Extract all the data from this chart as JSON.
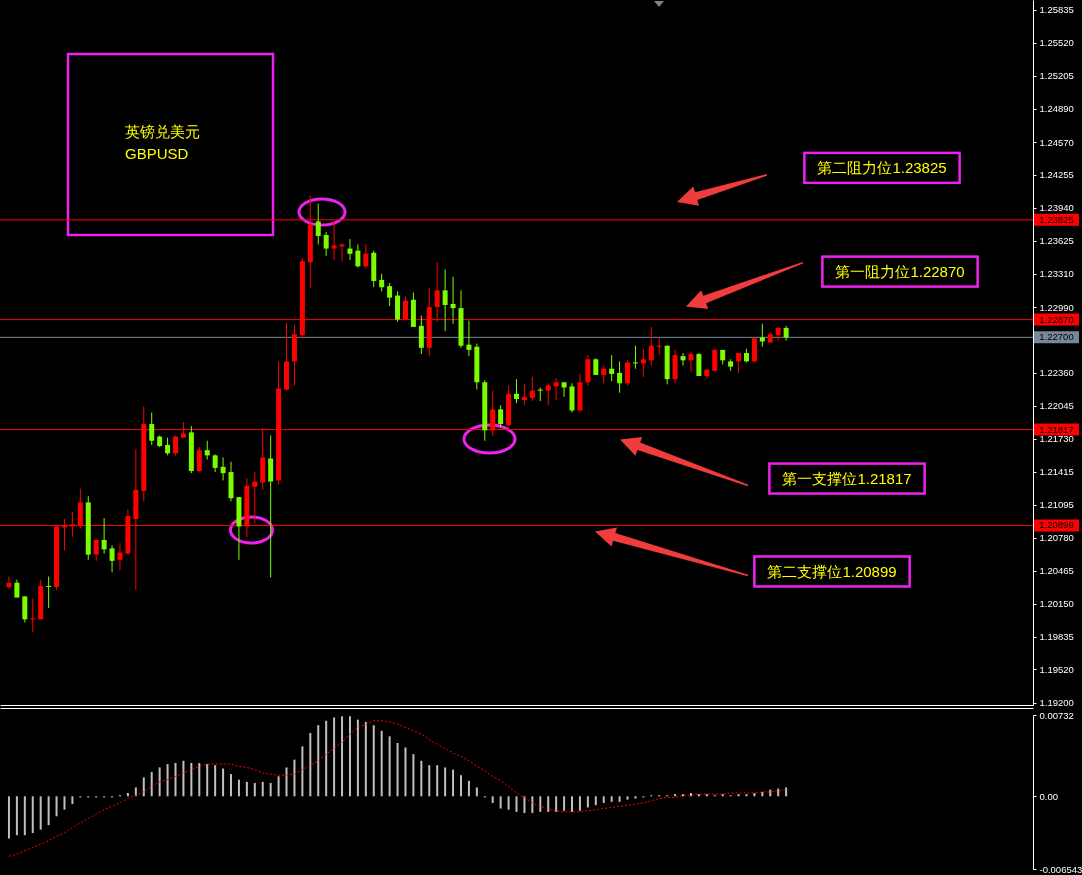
{
  "chart_data": [
    {
      "type": "candlestick",
      "title": "英镑兑美元",
      "subtitle": "GBPUSD",
      "categories": [
        null,
        null,
        null,
        null,
        null,
        null,
        null,
        null,
        null,
        null,
        null,
        null,
        null,
        null,
        null,
        null,
        null,
        null,
        null,
        null,
        null,
        null,
        null,
        null,
        null,
        null,
        null,
        null,
        null,
        null,
        null,
        null,
        null,
        null,
        null,
        null,
        null,
        null,
        null,
        null,
        null,
        null,
        null,
        null,
        null,
        null,
        null,
        null,
        null,
        null,
        null,
        null,
        null,
        null,
        null,
        null,
        null,
        null,
        null,
        null,
        null,
        null,
        null,
        null,
        null,
        null,
        null,
        null,
        null,
        null,
        null,
        null,
        null,
        null,
        null,
        null,
        null,
        null,
        null,
        null,
        null,
        null,
        null,
        null,
        null,
        null,
        null,
        null,
        null,
        null,
        null,
        null,
        null,
        null,
        null,
        null,
        null,
        null,
        null,
        null,
        null,
        null,
        null,
        null,
        null,
        null,
        null,
        null,
        null,
        null,
        null,
        null,
        null,
        null,
        null,
        null,
        null,
        null,
        null,
        null,
        null,
        null,
        null,
        null,
        null,
        null,
        null,
        null,
        null
      ],
      "ohlc": [
        [
          1.2031,
          1.2041,
          1.2029,
          1.2035
        ],
        [
          1.2035,
          1.2038,
          1.2021,
          1.2021
        ],
        [
          1.2022,
          1.2022,
          1.1997,
          1.2
        ],
        [
          1.2,
          1.202,
          1.1988,
          1.2001
        ],
        [
          1.2,
          1.2038,
          1.2,
          1.2032
        ],
        [
          1.2032,
          1.2041,
          1.2011,
          1.2031
        ],
        [
          1.2031,
          1.209,
          1.2028,
          1.2089
        ],
        [
          1.2088,
          1.2096,
          1.2066,
          1.209
        ],
        [
          1.2089,
          1.2103,
          1.2079,
          1.2091
        ],
        [
          1.209,
          1.2125,
          1.2087,
          1.2112
        ],
        [
          1.2112,
          1.2118,
          1.2057,
          1.2062
        ],
        [
          1.2062,
          1.2077,
          1.2056,
          1.2076
        ],
        [
          1.2076,
          1.2097,
          1.2063,
          1.2067
        ],
        [
          1.2068,
          1.2071,
          1.2045,
          1.2056
        ],
        [
          1.2057,
          1.2073,
          1.2047,
          1.2064
        ],
        [
          1.2063,
          1.2105,
          1.2062,
          1.2099
        ],
        [
          1.2096,
          1.2163,
          1.2028,
          1.2124
        ],
        [
          1.2123,
          1.2204,
          1.2113,
          1.2187
        ],
        [
          1.2187,
          1.2198,
          1.2167,
          1.2171
        ],
        [
          1.2175,
          1.2176,
          1.2165,
          1.2166
        ],
        [
          1.2167,
          1.2174,
          1.2157,
          1.2159
        ],
        [
          1.2159,
          1.2176,
          1.2157,
          1.2175
        ],
        [
          1.2174,
          1.2189,
          1.2174,
          1.2178
        ],
        [
          1.2179,
          1.2185,
          1.214,
          1.2142
        ],
        [
          1.2142,
          1.2165,
          1.2141,
          1.2162
        ],
        [
          1.2162,
          1.2171,
          1.2153,
          1.2157
        ],
        [
          1.2157,
          1.2158,
          1.2141,
          1.2145
        ],
        [
          1.2146,
          1.2155,
          1.2133,
          1.214
        ],
        [
          1.2141,
          1.2151,
          1.2113,
          1.2116
        ],
        [
          1.2117,
          1.2117,
          1.2057,
          1.2089
        ],
        [
          1.2089,
          1.2135,
          1.2079,
          1.2128
        ],
        [
          1.2127,
          1.2141,
          1.2092,
          1.2132
        ],
        [
          1.2131,
          1.2183,
          1.2124,
          1.2155
        ],
        [
          1.2154,
          1.2176,
          1.204,
          1.2132
        ],
        [
          1.2133,
          1.2247,
          1.2129,
          1.2221
        ],
        [
          1.222,
          1.2284,
          1.2219,
          1.2247
        ],
        [
          1.2247,
          1.2282,
          1.2224,
          1.2273
        ],
        [
          1.2272,
          1.2346,
          1.2269,
          1.2343
        ],
        [
          1.2342,
          1.2406,
          1.2317,
          1.2378
        ],
        [
          1.2381,
          1.2398,
          1.2359,
          1.2367
        ],
        [
          1.2368,
          1.2371,
          1.2348,
          1.2355
        ],
        [
          1.2355,
          1.2381,
          1.2344,
          1.2358
        ],
        [
          1.2357,
          1.236,
          1.2343,
          1.2359
        ],
        [
          1.2355,
          1.2364,
          1.2344,
          1.235
        ],
        [
          1.2353,
          1.2359,
          1.2337,
          1.2338
        ],
        [
          1.2338,
          1.2359,
          1.2336,
          1.235
        ],
        [
          1.2351,
          1.2353,
          1.2318,
          1.2324
        ],
        [
          1.2325,
          1.2331,
          1.2314,
          1.2318
        ],
        [
          1.2319,
          1.2322,
          1.23,
          1.2308
        ],
        [
          1.231,
          1.2314,
          1.2285,
          1.2287
        ],
        [
          1.2287,
          1.2309,
          1.2287,
          1.2305
        ],
        [
          1.2306,
          1.2313,
          1.228,
          1.228
        ],
        [
          1.2281,
          1.2291,
          1.2254,
          1.226
        ],
        [
          1.226,
          1.2317,
          1.2252,
          1.2299
        ],
        [
          1.2299,
          1.2342,
          1.2285,
          1.2315
        ],
        [
          1.2315,
          1.2335,
          1.2276,
          1.2301
        ],
        [
          1.2302,
          1.2328,
          1.2283,
          1.2298
        ],
        [
          1.2298,
          1.2315,
          1.226,
          1.2262
        ],
        [
          1.2263,
          1.2286,
          1.2252,
          1.2258
        ],
        [
          1.2261,
          1.2264,
          1.222,
          1.2227
        ],
        [
          1.2227,
          1.2229,
          1.2171,
          1.2181
        ],
        [
          1.2181,
          1.2219,
          1.2176,
          1.2201
        ],
        [
          1.2201,
          1.2205,
          1.2184,
          1.2187
        ],
        [
          1.2186,
          1.2224,
          1.2185,
          1.2216
        ],
        [
          1.2216,
          1.223,
          1.2207,
          1.2211
        ],
        [
          1.221,
          1.2225,
          1.2205,
          1.2213
        ],
        [
          1.2212,
          1.2232,
          1.2209,
          1.2219
        ],
        [
          1.222,
          1.2222,
          1.2209,
          1.2219
        ],
        [
          1.2219,
          1.2226,
          1.2205,
          1.2224
        ],
        [
          1.2223,
          1.2231,
          1.221,
          1.2227
        ],
        [
          1.2227,
          1.2227,
          1.2213,
          1.2222
        ],
        [
          1.2223,
          1.2226,
          1.2198,
          1.22
        ],
        [
          1.22,
          1.2235,
          1.2199,
          1.2227
        ],
        [
          1.2227,
          1.2253,
          1.2224,
          1.2249
        ],
        [
          1.2249,
          1.225,
          1.2234,
          1.2234
        ],
        [
          1.2234,
          1.2243,
          1.2226,
          1.224
        ],
        [
          1.224,
          1.2253,
          1.2228,
          1.2235
        ],
        [
          1.2236,
          1.2247,
          1.2217,
          1.2226
        ],
        [
          1.2226,
          1.2248,
          1.2224,
          1.2246
        ],
        [
          1.2246,
          1.2262,
          1.224,
          1.2245
        ],
        [
          1.2245,
          1.2259,
          1.2232,
          1.2249
        ],
        [
          1.2248,
          1.228,
          1.2243,
          1.2262
        ],
        [
          1.2261,
          1.227,
          1.2253,
          1.2262
        ],
        [
          1.2262,
          1.2262,
          1.2225,
          1.223
        ],
        [
          1.223,
          1.2258,
          1.2226,
          1.2253
        ],
        [
          1.2252,
          1.2255,
          1.2243,
          1.2248
        ],
        [
          1.2248,
          1.2256,
          1.2237,
          1.2254
        ],
        [
          1.2254,
          1.2255,
          1.2233,
          1.2233
        ],
        [
          1.2233,
          1.224,
          1.223,
          1.2239
        ],
        [
          1.2238,
          1.2259,
          1.2238,
          1.2258
        ],
        [
          1.2258,
          1.2258,
          1.2244,
          1.2248
        ],
        [
          1.2247,
          1.2249,
          1.2238,
          1.2242
        ],
        [
          1.2247,
          1.2255,
          1.2236,
          1.2255
        ],
        [
          1.2255,
          1.2259,
          1.2246,
          1.2247
        ],
        [
          1.2247,
          1.227,
          1.2246,
          1.2269
        ],
        [
          1.227,
          1.2283,
          1.2261,
          1.2266
        ],
        [
          1.2265,
          1.2275,
          1.2265,
          1.2273
        ],
        [
          1.2272,
          1.228,
          1.2267,
          1.2279
        ],
        [
          1.2279,
          1.2281,
          1.2267,
          1.227
        ],
        null,
        null,
        null,
        null,
        null,
        null,
        null,
        null,
        null,
        null,
        null,
        null,
        null,
        null,
        null,
        null,
        null,
        null,
        null,
        null,
        null,
        null,
        null,
        null,
        null,
        null,
        null,
        null,
        null,
        null
      ],
      "colors": [
        "#ff0000",
        "#7cfc00",
        "#7cfc00",
        "#ff0000",
        "#ff0000",
        "#7cfc00",
        "#ff0000",
        "#ff0000",
        "#ff0000",
        "#ff0000",
        "#7cfc00",
        "#ff0000",
        "#7cfc00",
        "#7cfc00",
        "#ff0000",
        "#ff0000",
        "#ff0000",
        "#ff0000",
        "#7cfc00",
        "#7cfc00",
        "#7cfc00",
        "#ff0000",
        "#ff0000",
        "#7cfc00",
        "#ff0000",
        "#7cfc00",
        "#7cfc00",
        "#7cfc00",
        "#7cfc00",
        "#7cfc00",
        "#ff0000",
        "#ff0000",
        "#ff0000",
        "#7cfc00",
        "#ff0000",
        "#ff0000",
        "#ff0000",
        "#ff0000",
        "#ff0000",
        "#7cfc00",
        "#7cfc00",
        "#ff0000",
        "#ff0000",
        "#7cfc00",
        "#7cfc00",
        "#ff0000",
        "#7cfc00",
        "#7cfc00",
        "#7cfc00",
        "#7cfc00",
        "#ff0000",
        "#7cfc00",
        "#7cfc00",
        "#ff0000",
        "#ff0000",
        "#7cfc00",
        "#7cfc00",
        "#7cfc00",
        "#7cfc00",
        "#7cfc00",
        "#7cfc00",
        "#ff0000",
        "#7cfc00",
        "#ff0000",
        "#7cfc00",
        "#ff0000",
        "#ff0000",
        "#7cfc00",
        "#ff0000",
        "#ff0000",
        "#7cfc00",
        "#7cfc00",
        "#ff0000",
        "#ff0000",
        "#7cfc00",
        "#ff0000",
        "#7cfc00",
        "#7cfc00",
        "#ff0000",
        "#7cfc00",
        "#ff0000",
        "#ff0000",
        "#ff0000",
        "#7cfc00",
        "#ff0000",
        "#7cfc00",
        "#ff0000",
        "#7cfc00",
        "#ff0000",
        "#ff0000",
        "#7cfc00",
        "#7cfc00",
        "#ff0000",
        "#7cfc00",
        "#ff0000",
        "#7cfc00",
        "#ff0000",
        "#ff0000",
        "#7cfc00",
        null,
        null,
        null,
        null,
        null,
        null,
        null,
        null,
        null,
        null,
        null,
        null,
        null,
        null,
        null,
        null,
        null,
        null,
        null,
        null,
        null,
        null,
        null,
        null,
        null,
        null,
        null,
        null,
        null,
        null
      ],
      "ylim": [
        1.1918,
        1.2593
      ],
      "yticks": [
        1.25835,
        {
          "value": 1.2552,
          "label": "1.25520"
        },
        1.25205,
        {
          "value": 1.2489,
          "label": "1.24890"
        },
        {
          "value": 1.2457,
          "label": "1.24570"
        },
        1.24255,
        {
          "value": 1.2394,
          "label": "1.23940"
        },
        1.23625,
        {
          "value": 1.2331,
          "label": "1.23310"
        },
        {
          "value": 1.2299,
          "label": "1.22990"
        },
        {
          "value": 1.2236,
          "label": "1.22360"
        },
        1.22045,
        {
          "value": 1.2173,
          "label": "1.21730"
        },
        1.21415,
        1.21095,
        {
          "value": 1.2078,
          "label": "1.20780"
        },
        1.20465,
        {
          "value": 1.2015,
          "label": "1.20150"
        },
        1.19835,
        {
          "value": 1.1952,
          "label": "1.19520"
        },
        {
          "value": 1.192,
          "label": "1.19200"
        }
      ],
      "tick_labels": "y",
      "ref_lines": [
        {
          "axis": "y",
          "value": 1.23825,
          "label": "1.23825",
          "color": "#ff0000"
        },
        {
          "axis": "y",
          "value": 1.2287,
          "label": "1.22870",
          "color": "#ff0000"
        },
        {
          "axis": "y",
          "value": 1.227,
          "label": "1.22700",
          "color": "#778899"
        },
        {
          "axis": "y",
          "value": 1.21817,
          "label": "1.21817",
          "color": "#ff0000"
        },
        {
          "axis": "y",
          "value": 1.20899,
          "label": "1.20899",
          "color": "#ff0000"
        }
      ],
      "annotations": [
        {
          "text": "第二阻力位1.23825",
          "y": 1.23825
        },
        {
          "text": "第一阻力位1.22870",
          "y": 1.2287
        },
        {
          "text": "第一支撑位1.21817",
          "y": 1.21817
        },
        {
          "text": "第二支撑位1.20899",
          "y": 1.20899
        }
      ]
    },
    {
      "type": "bar",
      "categories": [
        null,
        null,
        null,
        null,
        null,
        null,
        null,
        null,
        null,
        null,
        null,
        null,
        null,
        null,
        null,
        null,
        null,
        null,
        null,
        null,
        null,
        null,
        null,
        null,
        null,
        null,
        null,
        null,
        null,
        null,
        null,
        null,
        null,
        null,
        null,
        null,
        null,
        null,
        null,
        null,
        null,
        null,
        null,
        null,
        null,
        null,
        null,
        null,
        null,
        null,
        null,
        null,
        null,
        null,
        null,
        null,
        null,
        null,
        null,
        null,
        null,
        null,
        null,
        null,
        null,
        null,
        null,
        null,
        null,
        null,
        null,
        null,
        null,
        null,
        null,
        null,
        null,
        null,
        null,
        null,
        null,
        null,
        null,
        null,
        null,
        null,
        null,
        null,
        null,
        null,
        null,
        null,
        null,
        null,
        null,
        null,
        null,
        null,
        null,
        null,
        null,
        null,
        null,
        null,
        null,
        null,
        null,
        null,
        null,
        null,
        null,
        null,
        null,
        null,
        null,
        null,
        null,
        null,
        null,
        null,
        null,
        null,
        null,
        null,
        null,
        null,
        null,
        null,
        null
      ],
      "series": [
        {
          "type": "bar",
          "color": "#c0c0c0",
          "values": [
            -0.0038,
            -0.0035,
            -0.0035,
            -0.0033,
            -0.003,
            -0.0026,
            -0.0018,
            -0.0012,
            -0.0007,
            -0.0001,
            -0.0001,
            -0.0001,
            -0.0001,
            -0.0001,
            0.0001,
            0.0003,
            0.0008,
            0.0017,
            0.0022,
            0.0026,
            0.0029,
            0.003,
            0.0032,
            0.003,
            0.003,
            0.0029,
            0.0028,
            0.0025,
            0.002,
            0.0015,
            0.0013,
            0.0012,
            0.0013,
            0.0012,
            0.0018,
            0.0026,
            0.0033,
            0.0045,
            0.0057,
            0.0064,
            0.0068,
            0.0071,
            0.0072,
            0.0072,
            0.0069,
            0.0067,
            0.0064,
            0.0059,
            0.0054,
            0.0048,
            0.0044,
            0.0038,
            0.0032,
            0.0028,
            0.0028,
            0.0026,
            0.0024,
            0.0019,
            0.0014,
            0.0008,
            -0.0001,
            -0.0006,
            -0.0011,
            -0.0012,
            -0.0014,
            -0.0015,
            -0.0015,
            -0.0014,
            -0.0014,
            -0.0014,
            -0.0013,
            -0.0014,
            -0.0013,
            -0.001,
            -0.0008,
            -0.0006,
            -0.0005,
            -0.0005,
            -0.0003,
            -0.0002,
            -0.0001,
            0.0001,
            0.0001,
            0.0001,
            0.0002,
            0.0002,
            0.0003,
            0.0002,
            0.0002,
            0.0001,
            0.0002,
            0.0001,
            0.0002,
            0.0002,
            0.0003,
            0.0004,
            0.0006,
            0.0007,
            0.0008,
            null,
            null,
            null,
            null,
            null,
            null,
            null,
            null,
            null,
            null,
            null,
            null,
            null,
            null,
            null,
            null,
            null,
            null,
            null,
            null,
            null,
            null,
            null,
            null,
            null,
            null,
            null,
            null,
            null,
            null
          ]
        },
        {
          "type": "line",
          "color": "#ff0000",
          "values": [
            -0.0054,
            -0.0052,
            -0.0049,
            -0.0046,
            -0.0043,
            -0.004,
            -0.0036,
            -0.0033,
            -0.0028,
            -0.0024,
            -0.002,
            -0.0016,
            -0.0012,
            -0.0009,
            -0.0006,
            -0.0002,
            0.0001,
            0.0004,
            0.0009,
            0.0013,
            0.0015,
            0.0018,
            0.0021,
            0.0024,
            0.0027,
            0.0029,
            0.0029,
            0.0029,
            0.0029,
            0.0027,
            0.0026,
            0.0024,
            0.0021,
            0.002,
            0.0019,
            0.0019,
            0.002,
            0.0024,
            0.0028,
            0.0032,
            0.0038,
            0.0043,
            0.0049,
            0.0056,
            0.0062,
            0.0065,
            0.0068,
            0.0068,
            0.0067,
            0.0065,
            0.0062,
            0.0059,
            0.0056,
            0.0051,
            0.0047,
            0.0043,
            0.0039,
            0.0036,
            0.0032,
            0.0027,
            0.0023,
            0.0018,
            0.0014,
            0.0009,
            0.0003,
            -0.0001,
            -0.0006,
            -0.0009,
            -0.0011,
            -0.0013,
            -0.0014,
            -0.0014,
            -0.0014,
            -0.0013,
            -0.0012,
            -0.0011,
            -0.001,
            -0.0009,
            -0.0008,
            -0.0007,
            -0.0006,
            -0.0004,
            -0.0002,
            -0.0001,
            -0.0001,
            0.0001,
            0.0001,
            0.0002,
            0.0002,
            0.0002,
            0.0002,
            0.0003,
            0.0003,
            0.0003,
            0.0003,
            0.0004,
            0.0004,
            0.0005,
            0.0006,
            null,
            null,
            null,
            null,
            null,
            null,
            null,
            null,
            null,
            null,
            null,
            null,
            null,
            null,
            null,
            null,
            null,
            null,
            null,
            null,
            null,
            null,
            null,
            null,
            null,
            null,
            null,
            null,
            null,
            null
          ]
        }
      ],
      "line_style": "dotted",
      "ylim": [
        -0.006543,
        0.00732
      ],
      "yticks": [
        0.00732,
        {
          "value": 0,
          "label": "0.00"
        },
        -0.006543
      ],
      "tick_labels": "y"
    }
  ]
}
